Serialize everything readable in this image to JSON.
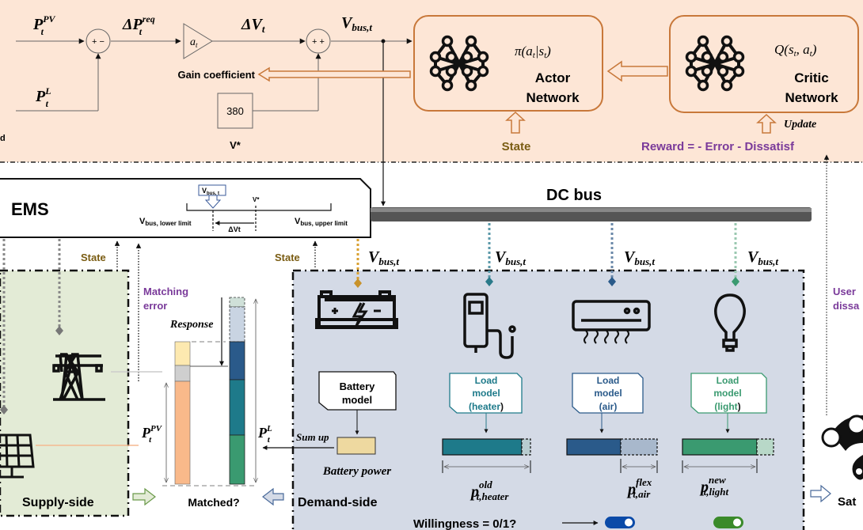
{
  "colors": {
    "top_bg": "#fde6d6",
    "supply_bg": "#e3ebd6",
    "demand_bg": "#d4dae6",
    "orange": "#c8783a",
    "state_text": "#7a5c12",
    "purple": "#7a3a9a",
    "heater": "#1e7a8a",
    "air": "#2a5a8a",
    "light": "#3a9a70",
    "pv": "#f9b98a",
    "grid_gray": "#c9c9c9",
    "battery_fill": "#eed9a0",
    "toggle_blue": "#0a4aa8",
    "toggle_green": "#3a8a2a"
  },
  "control": {
    "p_pv": {
      "base": "P",
      "sup": "PV",
      "sub": "t"
    },
    "p_l": {
      "base": "P",
      "sup": "L",
      "sub": "t"
    },
    "delta_p_req": {
      "base": "ΔP",
      "sup": "req",
      "sub": "t"
    },
    "delta_v": {
      "base": "ΔV",
      "sub": "t"
    },
    "v_bus": {
      "base": "V",
      "sub": "bus,t"
    },
    "gain_block": {
      "base": "a",
      "sub": "t"
    },
    "sum1_signs": "+ −",
    "sum2_signs": "+ +",
    "gain_coefficient": "Gain coefficient",
    "v_star_value": "380",
    "v_star_label": "V*",
    "left_cut_text": "d"
  },
  "actor": {
    "policy": "π(a|s)",
    "policy_parts": {
      "pi": "π(",
      "a": "a",
      "t1": "t",
      "bar": "|",
      "s": "s",
      "t2": "t",
      "close": ")"
    },
    "title1": "Actor",
    "title2": "Network",
    "state": "State"
  },
  "critic": {
    "q_parts": {
      "q": "Q(",
      "s": "s",
      "t1": "t",
      "comma": ", ",
      "a": "a",
      "t2": "t",
      "close": ")"
    },
    "title1": "Critic",
    "title2": "Network",
    "update": "Update",
    "reward": "Reward = - Error - Dissatisf"
  },
  "ems": {
    "title": "EMS",
    "v_bus_tag": {
      "base": "V",
      "sub": "bus, t"
    },
    "v_star": "V*",
    "lower": {
      "base": "V",
      "sub": "bus, lower limit"
    },
    "upper": {
      "base": "V",
      "sub": "bus, upper limit"
    },
    "delta_vt": "ΔVt"
  },
  "dc_bus": "DC bus",
  "supply": {
    "title": "Supply-side",
    "state": "State"
  },
  "matching": {
    "error_label1": "Matching",
    "error_label2": "error",
    "response": "Response",
    "p_pv": {
      "base": "P",
      "sup": "PV",
      "sub": "t"
    },
    "p_l": {
      "base": "P",
      "sup": "L",
      "sub": "t"
    },
    "matched": "Matched?",
    "sum_up": "Sum up"
  },
  "demand": {
    "title": "Demand-side",
    "state": "State",
    "v_bus": {
      "base": "V",
      "sub": "bus,t"
    },
    "battery_model": [
      "Battery",
      "model"
    ],
    "battery_power": "Battery power",
    "loads": [
      {
        "model": [
          "Load",
          "model",
          "(heater",
          ")"
        ],
        "p": {
          "base": "p",
          "sup": "old",
          "sub": "t,heater"
        },
        "fill_fraction": 0.9
      },
      {
        "model": [
          "Load",
          "model",
          "(air",
          ")"
        ],
        "p": {
          "base": "p",
          "sup": "flex",
          "sub": "t,air"
        },
        "fill_fraction": 0.6
      },
      {
        "model": [
          "Load",
          "model",
          "(light",
          ")"
        ],
        "p": {
          "base": "p",
          "sup": "new",
          "sub": "t,light"
        },
        "fill_fraction": 0.8
      }
    ],
    "willingness": "Willingness = 0/1?",
    "toggles": [
      {
        "state": "on",
        "color": "blue"
      },
      {
        "state": "on",
        "color": "green"
      }
    ]
  },
  "user": {
    "label1": "User",
    "label2": "dissa",
    "satisfaction": "Sat"
  }
}
